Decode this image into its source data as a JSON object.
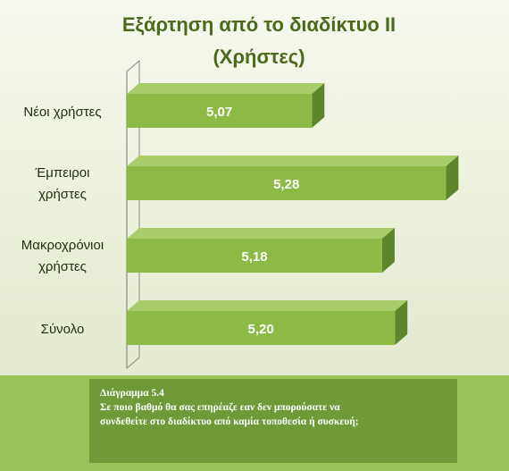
{
  "chart_data": {
    "type": "bar",
    "orientation": "horizontal",
    "title": "Εξάρτηση από το διαδίκτυο ΙΙ (Χρήστες)",
    "title_lines": [
      "Εξάρτηση από το διαδίκτυο ΙΙ",
      "(Χρήστες)"
    ],
    "categories": [
      [
        "Νέοι χρήστες"
      ],
      [
        "Έμπειροι",
        "χρήστες"
      ],
      [
        "Μακροχρόνιοι",
        "χρήστες"
      ],
      [
        "Σύνολο"
      ]
    ],
    "values": [
      5.07,
      5.28,
      5.18,
      5.2
    ],
    "data_labels": [
      "5,07",
      "5,28",
      "5,18",
      "5,20"
    ],
    "xlim": [
      4.78,
      5.32
    ],
    "grid": false,
    "legend": "none",
    "style": "3d",
    "colors": {
      "bar_front": "#8db946",
      "bar_top": "#a8cc6a",
      "bar_side": "#5e8529",
      "bar_label": "#ffffff",
      "category_label": "#1f2d0f",
      "title": "#4b6a1c",
      "axis": "#8a8a8a"
    }
  },
  "caption": {
    "line1": "Διάγραμμα 5.4",
    "line2": "Σε ποιο βαθμό θα σας επηρέαζε εαν δεν μπορούσατε να",
    "line3": "συνδεθείτε στο διαδίκτυο από καμία τοποθεσία ή συσκευή;"
  }
}
